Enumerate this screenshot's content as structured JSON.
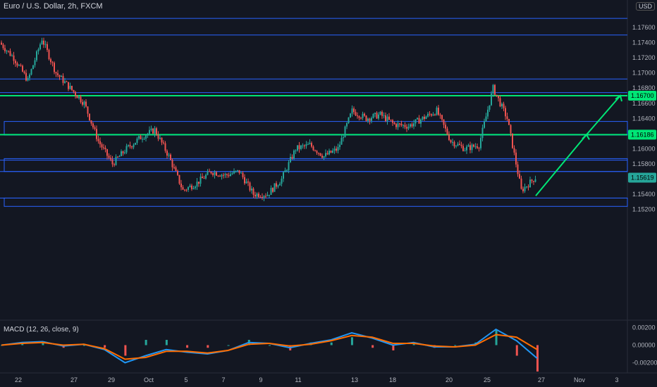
{
  "header": {
    "symbol_title": "Euro / U.S. Dollar, 2h, FXCM",
    "currency": "USD"
  },
  "macd_label": "MACD (12, 26, close, 9)",
  "colors": {
    "background": "#131722",
    "up": "#26a69a",
    "down": "#ef5350",
    "level_line": "#2962ff",
    "key_level": "#00e676",
    "macd": "#2196f3",
    "signal": "#ff6d00"
  },
  "chart_data": [
    {
      "type": "candlestick",
      "title": "Euro / U.S. Dollar, 2h, FXCM",
      "ylim": [
        1.5215,
        1.779
      ],
      "y_ticks": [
        "1.17600",
        "1.17400",
        "1.17200",
        "1.17000",
        "1.16800",
        "1.16600",
        "1.16400",
        "1.16200",
        "1.16000",
        "1.15800",
        "1.15600",
        "1.15400",
        "1.15200"
      ],
      "y_tick_values": [
        1.176,
        1.174,
        1.172,
        1.17,
        1.168,
        1.166,
        1.164,
        1.162,
        1.16,
        1.158,
        1.156,
        1.154,
        1.152
      ],
      "x_labels": [
        "22",
        "27",
        "29",
        "Oct",
        "5",
        "7",
        "9",
        "11",
        "13",
        "18",
        "20",
        "25",
        "27",
        "Nov",
        "3"
      ],
      "grid": false,
      "price_tags": [
        {
          "value": "1.16700",
          "y": 1.167,
          "color": "#00e676"
        },
        {
          "value": "1.16186",
          "y": 1.16186,
          "color": "#00e676"
        },
        {
          "value": "1.15619",
          "y": 1.15619,
          "color": "#26a69a"
        }
      ],
      "horizontal_levels": [
        1.1772,
        1.175,
        1.1692,
        1.1674,
        1.1585,
        1.157,
        1.1535
      ],
      "key_levels": [
        1.167,
        1.16186
      ],
      "zones": [
        {
          "low": 1.1618,
          "high": 1.1636
        },
        {
          "low": 1.157,
          "high": 1.1587
        },
        {
          "low": 1.1524,
          "high": 1.1535
        }
      ],
      "close_path": [
        {
          "x": "22",
          "y": 1.174
        },
        {
          "x": "24",
          "y": 1.172
        },
        {
          "x": "25",
          "y": 1.169
        },
        {
          "x": "26",
          "y": 1.1745
        },
        {
          "x": "27",
          "y": 1.17
        },
        {
          "x": "28",
          "y": 1.168
        },
        {
          "x": "29",
          "y": 1.166
        },
        {
          "x": "30",
          "y": 1.161
        },
        {
          "x": "Oct",
          "y": 1.158
        },
        {
          "x": "2",
          "y": 1.16
        },
        {
          "x": "3",
          "y": 1.1615
        },
        {
          "x": "5",
          "y": 1.1625
        },
        {
          "x": "6",
          "y": 1.159
        },
        {
          "x": "7",
          "y": 1.1545
        },
        {
          "x": "8",
          "y": 1.1555
        },
        {
          "x": "9",
          "y": 1.157
        },
        {
          "x": "10",
          "y": 1.1565
        },
        {
          "x": "11",
          "y": 1.157
        },
        {
          "x": "12",
          "y": 1.154
        },
        {
          "x": "13",
          "y": 1.154
        },
        {
          "x": "14",
          "y": 1.156
        },
        {
          "x": "15",
          "y": 1.16
        },
        {
          "x": "16",
          "y": 1.1605
        },
        {
          "x": "17",
          "y": 1.159
        },
        {
          "x": "18",
          "y": 1.16
        },
        {
          "x": "19",
          "y": 1.165
        },
        {
          "x": "20",
          "y": 1.164
        },
        {
          "x": "21",
          "y": 1.1645
        },
        {
          "x": "22",
          "y": 1.1632
        },
        {
          "x": "23",
          "y": 1.163
        },
        {
          "x": "24",
          "y": 1.164
        },
        {
          "x": "25",
          "y": 1.165
        },
        {
          "x": "26",
          "y": 1.161
        },
        {
          "x": "27",
          "y": 1.16
        },
        {
          "x": "28",
          "y": 1.1605
        },
        {
          "x": "29",
          "y": 1.168
        },
        {
          "x": "30",
          "y": 1.164
        },
        {
          "x": "31",
          "y": 1.1545
        },
        {
          "x": "31b",
          "y": 1.1562
        }
      ],
      "projection": [
        {
          "from": 1.1538,
          "to": 1.16186
        },
        {
          "from": 1.16186,
          "to": 1.167
        }
      ]
    },
    {
      "type": "line",
      "title": "MACD (12, 26, close, 9)",
      "y_ticks": [
        "0.00200",
        "0.00000",
        "-0.00200"
      ],
      "series": [
        {
          "name": "MACD",
          "values": [
            0.0,
            0.0003,
            0.0004,
            -0.0001,
            0.0001,
            -0.0005,
            -0.002,
            -0.0012,
            -0.0005,
            -0.0008,
            -0.001,
            -0.0006,
            0.0003,
            0.0002,
            -0.0003,
            0.0002,
            0.0006,
            0.0014,
            0.0008,
            0.0,
            0.0003,
            -0.0002,
            -0.0002,
            0.0001,
            0.0018,
            0.0005,
            -0.0015
          ]
        },
        {
          "name": "Signal",
          "values": [
            0.0,
            0.0002,
            0.0003,
            0.0,
            0.0001,
            -0.0004,
            -0.0016,
            -0.0014,
            -0.0007,
            -0.0007,
            -0.0009,
            -0.0006,
            0.0001,
            0.0002,
            -0.0001,
            0.0001,
            0.0005,
            0.0011,
            0.0009,
            0.0002,
            0.0002,
            -0.0001,
            -0.0002,
            0.0,
            0.0012,
            0.0009,
            -0.0005
          ]
        }
      ]
    }
  ]
}
